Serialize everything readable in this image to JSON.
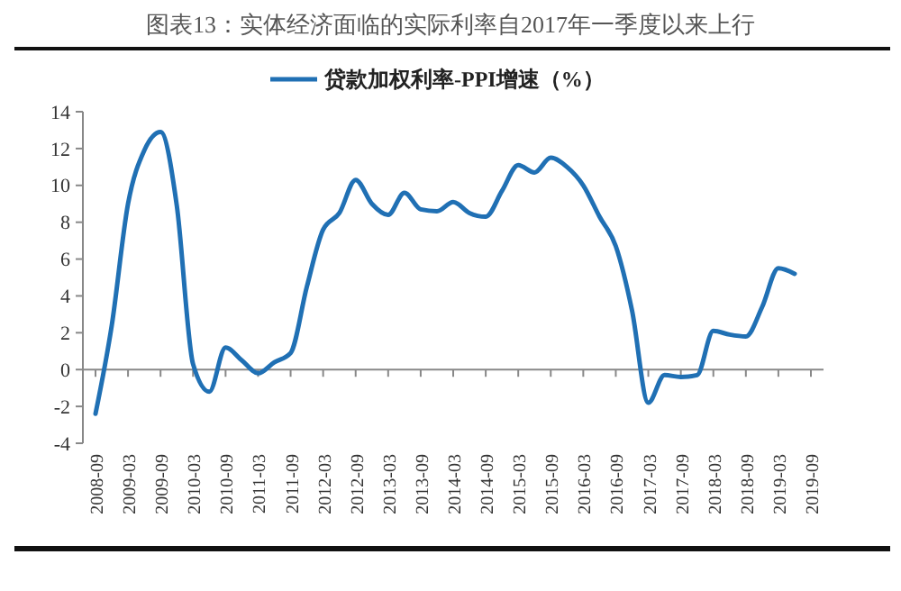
{
  "chart_data": {
    "type": "line",
    "title": "图表13：实体经济面临的实际利率自2017年一季度以来上行",
    "categories": [
      "2008-09",
      null,
      "2009-03",
      null,
      "2009-09",
      null,
      "2010-03",
      null,
      "2010-09",
      null,
      "2011-03",
      null,
      "2011-09",
      null,
      "2012-03",
      null,
      "2012-09",
      null,
      "2013-03",
      null,
      "2013-09",
      null,
      "2014-03",
      null,
      "2014-09",
      null,
      "2015-03",
      null,
      "2015-09",
      null,
      "2016-03",
      null,
      "2016-09",
      null,
      "2017-03",
      null,
      "2017-09",
      null,
      "2018-03",
      null,
      "2018-09",
      null,
      "2019-03",
      null,
      "2019-09"
    ],
    "series": [
      {
        "name": "贷款加权利率-PPI增速（%）",
        "color": "#2070b4",
        "values": [
          -2.4,
          2.4,
          9.0,
          11.9,
          12.9,
          8.9,
          0.3,
          -1.2,
          1.2,
          0.5,
          -0.2,
          0.4,
          0.9,
          4.5,
          7.6,
          8.5,
          10.3,
          9.0,
          8.4,
          9.6,
          8.7,
          8.6,
          9.1,
          8.5,
          8.3,
          9.7,
          11.1,
          10.7,
          11.5,
          11.0,
          10.0,
          8.3,
          6.7,
          3.2,
          -1.8,
          -0.3,
          -0.4,
          -0.3,
          2.1,
          1.9,
          1.8,
          3.4,
          5.5,
          5.2,
          null
        ]
      }
    ],
    "ylim": [
      -4,
      14
    ],
    "yticks": [
      -4,
      -2,
      0,
      2,
      4,
      6,
      8,
      10,
      12,
      14
    ],
    "legend": "top",
    "line_style": "solid",
    "marker": "none"
  }
}
